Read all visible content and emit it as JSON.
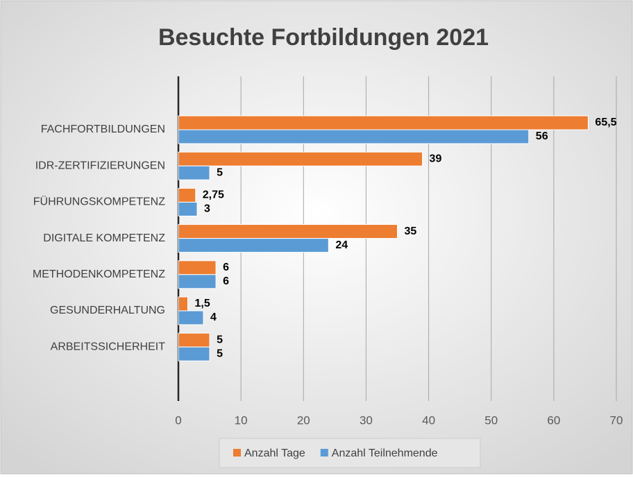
{
  "chart_data": {
    "type": "hbar",
    "title": "Besuchte Fortbildungen 2021",
    "categories": [
      "FACHFORTBILDUNGEN",
      "IDR-ZERTIFIZIERUNGEN",
      "FÜHRUNGSKOMPETENZ",
      "DIGITALE KOMPETENZ",
      "METHODENKOMPETENZ",
      "GESUNDERHALTUNG",
      "ARBEITSSICHERHEIT"
    ],
    "series": [
      {
        "name": "Anzahl Tage",
        "color": "#ed7d31",
        "values": [
          65.5,
          39,
          2.75,
          35,
          6,
          1.5,
          5
        ],
        "value_labels": [
          "65,5",
          "39",
          "2,75",
          "35",
          "6",
          "1,5",
          "5"
        ]
      },
      {
        "name": "Anzahl Teilnehmende",
        "color": "#5b9bd5",
        "values": [
          56,
          5,
          3,
          24,
          6,
          4,
          5
        ]
      }
    ],
    "xlim": [
      0,
      70
    ],
    "xticks": [
      0,
      10,
      20,
      30,
      40,
      50,
      60,
      70
    ],
    "grid": true,
    "legend": "bottom"
  }
}
